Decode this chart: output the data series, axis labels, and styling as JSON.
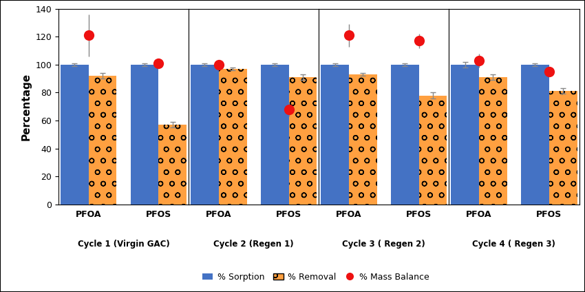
{
  "sorption_values": [
    100,
    100,
    100,
    100,
    100,
    100,
    100,
    100
  ],
  "removal_values": [
    92,
    57,
    97,
    91,
    93,
    78,
    91,
    81
  ],
  "mass_balance_values": [
    121,
    101,
    100,
    68,
    121,
    117,
    103,
    95
  ],
  "sorption_errors": [
    1,
    1,
    1,
    1,
    1,
    1,
    2,
    1
  ],
  "removal_errors": [
    2,
    2,
    1,
    2,
    1,
    2,
    2,
    2
  ],
  "mass_balance_errors": [
    15,
    2,
    2,
    5,
    8,
    5,
    5,
    3
  ],
  "cycle_labels": [
    "Cycle 1 (Virgin GAC)",
    "Cycle 2 (Regen 1)",
    "Cycle 3 ( Regen 2)",
    "Cycle 4 ( Regen 3)"
  ],
  "compound_labels": [
    "PFOA",
    "PFOS"
  ],
  "ylabel": "Percentage",
  "ylim": [
    0,
    140
  ],
  "yticks": [
    0,
    20,
    40,
    60,
    80,
    100,
    120,
    140
  ],
  "bar_color_sorption": "#4472C4",
  "bar_color_removal": "#FFA040",
  "dot_color_mass_balance": "#EE1111",
  "bar_width": 0.28,
  "legend_labels": [
    "% Sorption",
    "% Removal",
    "% Mass Balance"
  ],
  "background_color": "#FFFFFF",
  "outer_border_color": "#888888"
}
